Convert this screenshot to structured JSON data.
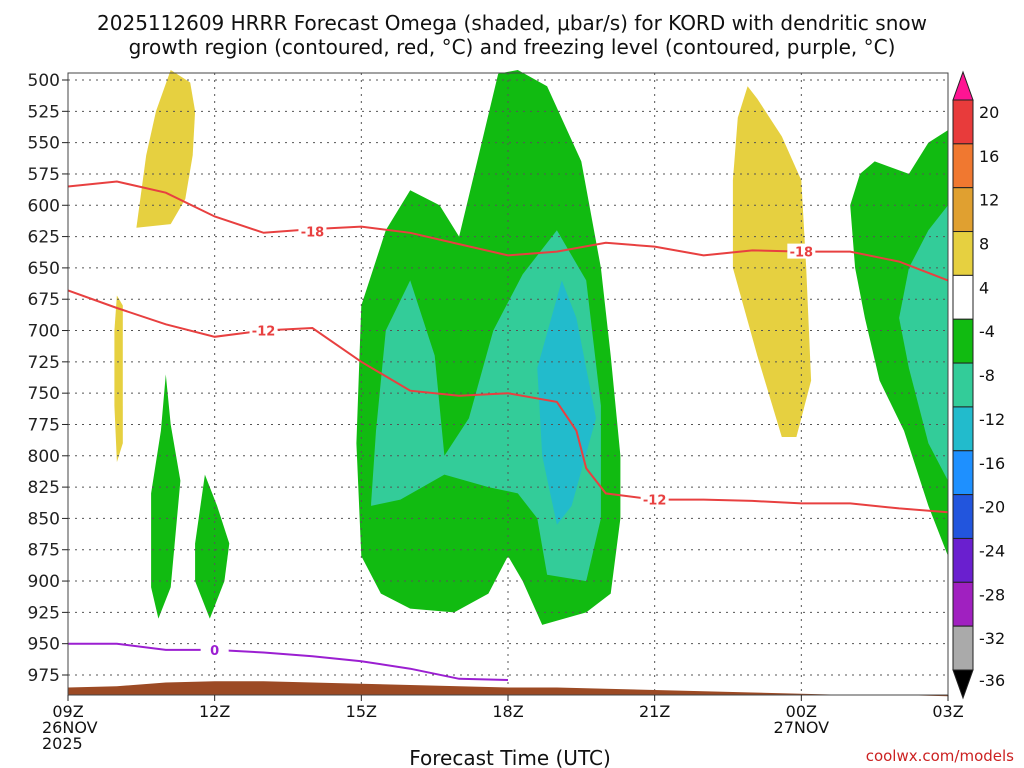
{
  "chart_data": {
    "type": "time-height-contour",
    "title": "2025112609 HRRR Forecast Omega (shaded, μbar/s) for KORD with dendritic snow growth region (contoured, red, °C) and freezing level (contoured, purple, °C)",
    "xlabel": "Forecast Time (UTC)",
    "ylabel": "Pressure (hPa)",
    "credit": "coolwx.com/models",
    "x_hours": [
      0,
      3,
      6,
      9,
      12,
      15,
      18
    ],
    "x_ticks": [
      {
        "hour": 0,
        "lines": [
          "09Z",
          "26NOV",
          "2025"
        ]
      },
      {
        "hour": 3,
        "lines": [
          "12Z"
        ]
      },
      {
        "hour": 6,
        "lines": [
          "15Z"
        ]
      },
      {
        "hour": 9,
        "lines": [
          "18Z"
        ]
      },
      {
        "hour": 12,
        "lines": [
          "21Z"
        ]
      },
      {
        "hour": 15,
        "lines": [
          "00Z",
          "27NOV"
        ]
      },
      {
        "hour": 18,
        "lines": [
          "03Z"
        ]
      }
    ],
    "y_ticks": [
      500,
      525,
      550,
      575,
      600,
      625,
      650,
      675,
      700,
      725,
      750,
      775,
      800,
      825,
      850,
      875,
      900,
      925,
      950,
      975
    ],
    "ylim": [
      495,
      990
    ],
    "xlim": [
      0,
      18
    ],
    "colorbar": {
      "labels": [
        "20",
        "16",
        "12",
        "8",
        "4",
        "-4",
        "-8",
        "-12",
        "-16",
        "-20",
        "-24",
        "-28",
        "-32",
        "-36"
      ],
      "colors": [
        "#ff1493",
        "#e83b3b",
        "#f07830",
        "#e0a030",
        "#e6d040",
        "#ffffff",
        "#11bb11",
        "#33cc99",
        "#22bbcc",
        "#1e90ff",
        "#2255dd",
        "#6a1fcf",
        "#a020c0",
        "#aaaaaa",
        "#000000"
      ]
    },
    "contours": [
      {
        "name": "dgz-minus18",
        "label": "-18",
        "color": "#e84040",
        "points": [
          [
            0,
            585
          ],
          [
            1,
            581
          ],
          [
            2,
            590
          ],
          [
            3,
            609
          ],
          [
            4,
            622
          ],
          [
            5,
            619
          ],
          [
            6,
            617
          ],
          [
            7,
            622
          ],
          [
            8,
            631
          ],
          [
            9,
            640
          ],
          [
            10,
            637
          ],
          [
            11,
            630
          ],
          [
            12,
            633
          ],
          [
            13,
            640
          ],
          [
            14,
            636
          ],
          [
            15,
            637
          ],
          [
            16,
            637
          ],
          [
            17,
            645
          ],
          [
            18,
            660
          ]
        ]
      },
      {
        "name": "dgz-minus12",
        "label": "-12",
        "color": "#e84040",
        "points": [
          [
            0,
            668
          ],
          [
            1,
            682
          ],
          [
            2,
            695
          ],
          [
            3,
            705
          ],
          [
            4,
            700
          ],
          [
            5,
            698
          ],
          [
            6,
            725
          ],
          [
            7,
            748
          ],
          [
            8,
            752
          ],
          [
            9,
            750
          ],
          [
            10,
            757
          ],
          [
            10.4,
            780
          ],
          [
            10.6,
            810
          ],
          [
            11,
            830
          ],
          [
            12,
            835
          ],
          [
            13,
            835
          ],
          [
            14,
            836
          ],
          [
            15,
            838
          ],
          [
            16,
            838
          ],
          [
            17,
            842
          ],
          [
            18,
            845
          ]
        ]
      },
      {
        "name": "freezing-level",
        "label": "0",
        "color": "#9b1fd1",
        "points": [
          [
            0,
            950
          ],
          [
            1,
            950
          ],
          [
            2,
            955
          ],
          [
            3,
            955
          ],
          [
            4,
            957
          ],
          [
            5,
            960
          ],
          [
            6,
            964
          ],
          [
            7,
            970
          ],
          [
            8,
            978
          ],
          [
            9,
            979
          ]
        ]
      }
    ],
    "omega_regions": [
      {
        "value_band": "4 to 8",
        "color": "#e6d040",
        "points": [
          [
            1.4,
            618
          ],
          [
            1.6,
            560
          ],
          [
            1.8,
            525
          ],
          [
            2.1,
            492
          ],
          [
            2.5,
            502
          ],
          [
            2.6,
            525
          ],
          [
            2.55,
            560
          ],
          [
            2.4,
            595
          ],
          [
            2.1,
            615
          ]
        ]
      },
      {
        "value_band": "4 to 8",
        "color": "#e6d040",
        "points": [
          [
            1.0,
            672
          ],
          [
            1.12,
            680
          ],
          [
            1.12,
            790
          ],
          [
            1.0,
            805
          ],
          [
            0.95,
            760
          ],
          [
            0.95,
            700
          ]
        ]
      },
      {
        "value_band": "4 to 8",
        "color": "#e6d040",
        "points": [
          [
            13.7,
            530
          ],
          [
            13.9,
            505
          ],
          [
            14.1,
            515
          ],
          [
            14.6,
            545
          ],
          [
            15.0,
            580
          ],
          [
            15.1,
            650
          ],
          [
            15.2,
            740
          ],
          [
            14.9,
            785
          ],
          [
            14.6,
            785
          ],
          [
            14.1,
            720
          ],
          [
            13.6,
            650
          ],
          [
            13.6,
            580
          ]
        ]
      },
      {
        "value_band": "-4 to -8",
        "color": "#11bb11",
        "points": [
          [
            1.7,
            905
          ],
          [
            1.85,
            930
          ],
          [
            2.1,
            905
          ],
          [
            2.3,
            820
          ],
          [
            2.1,
            775
          ],
          [
            2.0,
            735
          ],
          [
            1.9,
            780
          ],
          [
            1.7,
            830
          ]
        ]
      },
      {
        "value_band": "-4 to -8",
        "color": "#11bb11",
        "points": [
          [
            2.6,
            870
          ],
          [
            2.8,
            815
          ],
          [
            3.05,
            840
          ],
          [
            3.3,
            870
          ],
          [
            3.2,
            900
          ],
          [
            2.9,
            930
          ],
          [
            2.6,
            900
          ]
        ]
      },
      {
        "value_band": "-4 to -8",
        "color": "#11bb11",
        "points": [
          [
            6.0,
            680
          ],
          [
            6.5,
            620
          ],
          [
            7.0,
            588
          ],
          [
            7.6,
            600
          ],
          [
            8.0,
            625
          ],
          [
            8.4,
            560
          ],
          [
            8.8,
            495
          ],
          [
            9.2,
            492
          ],
          [
            9.8,
            505
          ],
          [
            10.5,
            565
          ],
          [
            10.9,
            650
          ],
          [
            11.1,
            720
          ],
          [
            11.3,
            800
          ],
          [
            11.3,
            850
          ],
          [
            11.1,
            910
          ],
          [
            10.6,
            925
          ],
          [
            9.7,
            935
          ],
          [
            9.3,
            900
          ],
          [
            9.0,
            880
          ],
          [
            8.6,
            910
          ],
          [
            7.9,
            925
          ],
          [
            7.0,
            922
          ],
          [
            6.4,
            910
          ],
          [
            6.0,
            880
          ],
          [
            5.9,
            790
          ]
        ]
      },
      {
        "value_band": "-8 to -12",
        "color": "#33cc99",
        "points": [
          [
            6.2,
            838
          ],
          [
            6.3,
            780
          ],
          [
            6.5,
            700
          ],
          [
            7.0,
            660
          ],
          [
            7.5,
            720
          ],
          [
            7.7,
            800
          ],
          [
            8.2,
            770
          ],
          [
            8.7,
            700
          ],
          [
            9.3,
            655
          ],
          [
            10.0,
            620
          ],
          [
            10.6,
            660
          ],
          [
            10.9,
            760
          ],
          [
            10.9,
            850
          ],
          [
            10.6,
            900
          ],
          [
            9.8,
            895
          ],
          [
            9.6,
            850
          ],
          [
            9.2,
            830
          ],
          [
            8.6,
            825
          ],
          [
            7.7,
            815
          ],
          [
            6.8,
            835
          ],
          [
            6.2,
            840
          ]
        ]
      },
      {
        "value_band": "-12 to -16",
        "color": "#22bbcc",
        "points": [
          [
            9.6,
            730
          ],
          [
            10.1,
            660
          ],
          [
            10.4,
            690
          ],
          [
            10.8,
            770
          ],
          [
            10.3,
            840
          ],
          [
            10.0,
            855
          ],
          [
            9.7,
            800
          ]
        ]
      },
      {
        "value_band": "-4 to -8",
        "color": "#11bb11",
        "points": [
          [
            16.2,
            575
          ],
          [
            16.5,
            565
          ],
          [
            17.2,
            575
          ],
          [
            17.6,
            550
          ],
          [
            18.0,
            540
          ],
          [
            18.0,
            880
          ],
          [
            17.6,
            840
          ],
          [
            17.1,
            780
          ],
          [
            16.6,
            740
          ],
          [
            16.3,
            690
          ],
          [
            16.1,
            650
          ],
          [
            16.0,
            600
          ]
        ]
      },
      {
        "value_band": "-8 to -12",
        "color": "#33cc99",
        "points": [
          [
            17.2,
            650
          ],
          [
            17.6,
            620
          ],
          [
            18.0,
            600
          ],
          [
            18.0,
            820
          ],
          [
            17.6,
            790
          ],
          [
            17.2,
            730
          ],
          [
            17.0,
            690
          ]
        ]
      }
    ],
    "terrain": {
      "color": "#9c4a24",
      "top": [
        [
          0,
          985
        ],
        [
          1,
          984
        ],
        [
          2,
          981
        ],
        [
          3,
          980
        ],
        [
          4,
          980
        ],
        [
          5,
          981
        ],
        [
          6,
          982
        ],
        [
          7,
          983
        ],
        [
          8,
          984
        ],
        [
          9,
          985
        ],
        [
          10,
          985
        ],
        [
          11,
          986
        ],
        [
          12,
          987
        ],
        [
          13,
          988
        ],
        [
          14,
          989
        ],
        [
          15,
          990
        ],
        [
          16,
          991
        ],
        [
          17,
          991
        ],
        [
          18,
          992
        ]
      ]
    }
  }
}
